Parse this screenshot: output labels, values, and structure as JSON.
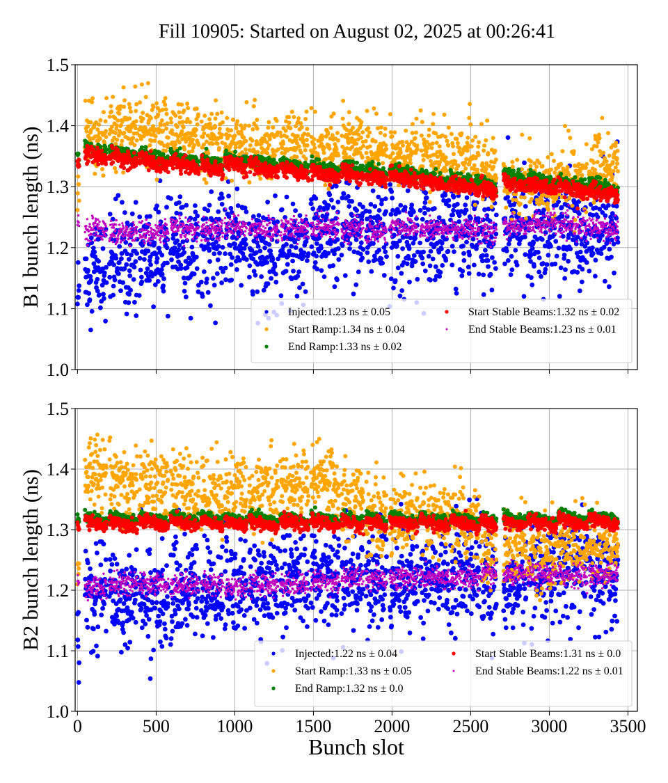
{
  "title": "Fill 10905: Started on August 02, 2025 at 00:26:41",
  "chart_data": [
    {
      "type": "scatter",
      "ylabel": "B1 bunch length (ns)",
      "xlabel": "",
      "xlim": [
        -15,
        3560
      ],
      "ylim": [
        1.0,
        1.5
      ],
      "xticks": [
        0,
        500,
        1000,
        1500,
        2000,
        2500,
        3000,
        3500
      ],
      "yticks": [
        "1.0",
        "1.1",
        "1.2",
        "1.3",
        "1.4",
        "1.5"
      ],
      "show_xtick_labels": false,
      "grid": true,
      "legend_position": "lower-right",
      "trains": [
        [
          0,
          12
        ],
        [
          48,
          138
        ],
        [
          203,
          177
        ],
        [
          393,
          185
        ],
        [
          592,
          180
        ],
        [
          787,
          140
        ],
        [
          937,
          140
        ],
        [
          1091,
          185
        ],
        [
          1290,
          180
        ],
        [
          1485,
          180
        ],
        [
          1679,
          140
        ],
        [
          1833,
          134
        ],
        [
          1985,
          180
        ],
        [
          2178,
          186
        ],
        [
          2372,
          186
        ],
        [
          2567,
          98
        ],
        [
          2709,
          146
        ],
        [
          2863,
          186
        ],
        [
          3058,
          185
        ],
        [
          3252,
          186
        ]
      ],
      "series": [
        {
          "name": "Injected:1.23 ns ± 0.05",
          "color": "#0000ff",
          "marker": "large",
          "spread": 0.04,
          "train_means": [
            1.12,
            1.17,
            1.18,
            1.19,
            1.2,
            1.21,
            1.22,
            1.19,
            1.21,
            1.22,
            1.23,
            1.23,
            1.22,
            1.22,
            1.23,
            1.22,
            1.24,
            1.22,
            1.23,
            1.24
          ]
        },
        {
          "name": "Start Ramp:1.34 ns ± 0.04",
          "color": "#ffa500",
          "marker": "medium",
          "spread": 0.025,
          "train_means": [
            1.28,
            1.38,
            1.39,
            1.39,
            1.39,
            1.37,
            1.36,
            1.36,
            1.37,
            1.36,
            1.37,
            1.36,
            1.35,
            1.35,
            1.34,
            1.33,
            1.3,
            1.3,
            1.31,
            1.33
          ]
        },
        {
          "name": "End Ramp:1.33 ns ± 0.02",
          "color": "#008000",
          "marker": "medium",
          "spread": 0.005,
          "train_means": [
            1.345,
            1.36,
            1.355,
            1.35,
            1.345,
            1.34,
            1.345,
            1.34,
            1.335,
            1.33,
            1.33,
            1.325,
            1.325,
            1.315,
            1.31,
            1.305,
            1.315,
            1.31,
            1.305,
            1.3
          ]
        },
        {
          "name": "Start Stable Beams:1.32 ns ± 0.02",
          "color": "#ff0000",
          "marker": "medium",
          "spread": 0.006,
          "train_means": [
            1.335,
            1.35,
            1.345,
            1.34,
            1.335,
            1.33,
            1.335,
            1.33,
            1.325,
            1.32,
            1.32,
            1.315,
            1.315,
            1.305,
            1.3,
            1.295,
            1.305,
            1.3,
            1.295,
            1.29
          ]
        },
        {
          "name": "End Stable Beams:1.23 ns ± 0.01",
          "color": "#bf00bf",
          "marker": "small",
          "spread": 0.009,
          "train_means": [
            1.24,
            1.23,
            1.225,
            1.225,
            1.23,
            1.23,
            1.235,
            1.23,
            1.23,
            1.235,
            1.23,
            1.225,
            1.235,
            1.23,
            1.23,
            1.225,
            1.235,
            1.24,
            1.235,
            1.23
          ]
        }
      ]
    },
    {
      "type": "scatter",
      "ylabel": "B2 bunch length (ns)",
      "xlabel": "Bunch slot",
      "xlim": [
        -15,
        3560
      ],
      "ylim": [
        1.0,
        1.5
      ],
      "xticks": [
        0,
        500,
        1000,
        1500,
        2000,
        2500,
        3000,
        3500
      ],
      "xtick_labels": [
        "0",
        "500",
        "1000",
        "1500",
        "2000",
        "2500",
        "3000",
        "3500"
      ],
      "yticks": [
        "1.0",
        "1.1",
        "1.2",
        "1.3",
        "1.4",
        "1.5"
      ],
      "show_xtick_labels": true,
      "grid": true,
      "legend_position": "lower-right",
      "trains": [
        [
          0,
          12
        ],
        [
          48,
          138
        ],
        [
          203,
          177
        ],
        [
          393,
          185
        ],
        [
          592,
          180
        ],
        [
          787,
          140
        ],
        [
          937,
          140
        ],
        [
          1091,
          185
        ],
        [
          1290,
          180
        ],
        [
          1485,
          180
        ],
        [
          1679,
          140
        ],
        [
          1833,
          134
        ],
        [
          1985,
          180
        ],
        [
          2178,
          186
        ],
        [
          2372,
          186
        ],
        [
          2567,
          98
        ],
        [
          2709,
          146
        ],
        [
          2863,
          186
        ],
        [
          3058,
          185
        ],
        [
          3252,
          186
        ]
      ],
      "series": [
        {
          "name": "Injected:1.22 ns ± 0.04",
          "color": "#0000ff",
          "marker": "large",
          "spread": 0.04,
          "train_means": [
            1.12,
            1.21,
            1.19,
            1.19,
            1.2,
            1.2,
            1.21,
            1.21,
            1.22,
            1.23,
            1.22,
            1.22,
            1.21,
            1.22,
            1.23,
            1.2,
            1.21,
            1.23,
            1.24,
            1.23
          ]
        },
        {
          "name": "Start Ramp:1.33 ns ± 0.05",
          "color": "#ffa500",
          "marker": "medium",
          "spread": 0.03,
          "train_means": [
            1.23,
            1.39,
            1.37,
            1.37,
            1.36,
            1.36,
            1.36,
            1.36,
            1.37,
            1.38,
            1.35,
            1.32,
            1.32,
            1.31,
            1.31,
            1.26,
            1.27,
            1.26,
            1.27,
            1.27
          ]
        },
        {
          "name": "End Ramp:1.32 ns ± 0.0",
          "color": "#008000",
          "marker": "medium",
          "spread": 0.004,
          "train_means": [
            1.318,
            1.318,
            1.318,
            1.318,
            1.318,
            1.318,
            1.318,
            1.318,
            1.318,
            1.318,
            1.318,
            1.318,
            1.318,
            1.318,
            1.318,
            1.318,
            1.318,
            1.318,
            1.32,
            1.32
          ]
        },
        {
          "name": "Start Stable Beams:1.31 ns ± 0.0",
          "color": "#ff0000",
          "marker": "medium",
          "spread": 0.005,
          "train_means": [
            1.305,
            1.31,
            1.31,
            1.31,
            1.31,
            1.31,
            1.31,
            1.31,
            1.31,
            1.31,
            1.31,
            1.31,
            1.31,
            1.31,
            1.31,
            1.31,
            1.31,
            1.31,
            1.312,
            1.312
          ]
        },
        {
          "name": "End Stable Beams:1.22 ns ± 0.01",
          "color": "#bf00bf",
          "marker": "small",
          "spread": 0.009,
          "train_means": [
            1.22,
            1.205,
            1.21,
            1.21,
            1.21,
            1.21,
            1.205,
            1.21,
            1.21,
            1.215,
            1.22,
            1.22,
            1.22,
            1.22,
            1.22,
            1.225,
            1.225,
            1.225,
            1.225,
            1.225
          ]
        }
      ]
    }
  ]
}
